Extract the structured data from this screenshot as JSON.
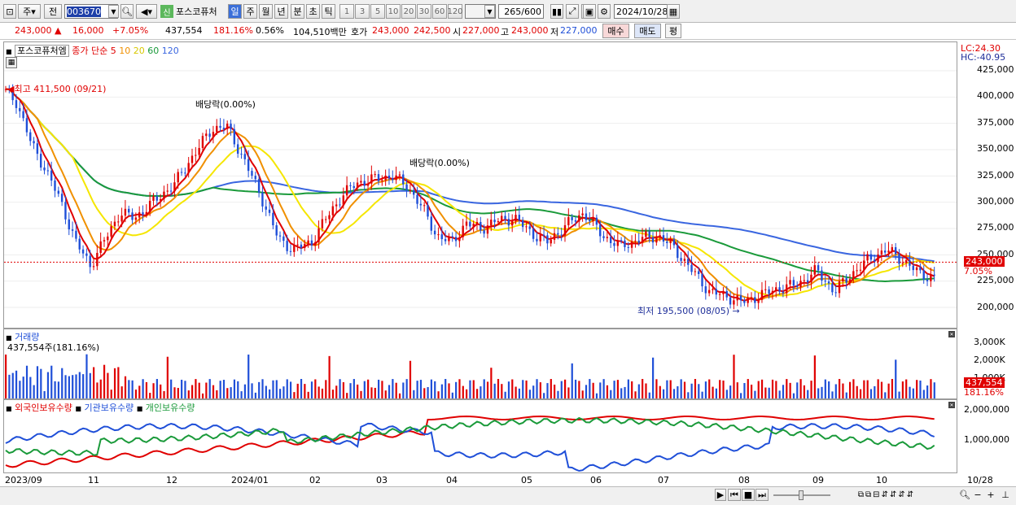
{
  "toolbar": {
    "period_label": "주",
    "prev_label": "전",
    "code": "003670",
    "name": "포스코퓨처",
    "daily": "일",
    "weekly": "주",
    "monthly": "월",
    "yearly": "년",
    "minute": "분",
    "second": "초",
    "tick": "틱",
    "intervals": [
      "1",
      "3",
      "5",
      "10",
      "20",
      "30",
      "60",
      "120"
    ],
    "count_value": "265",
    "count_total": "/600",
    "date": "2024/10/28",
    "new_badge": "신"
  },
  "quote": {
    "price": "243,000",
    "change": "16,000",
    "change_pct": "+7.05%",
    "volume": "437,554",
    "volume_ratio": "181.16%",
    "turnover": "0.56%",
    "amount": "104,510백만",
    "ask_label": "호가",
    "ask": "243,000",
    "bid": "242,500",
    "open_label": "시",
    "open": "227,000",
    "high_label": "고",
    "high": "243,000",
    "low_label": "저",
    "low": "227,000",
    "buy_label": "매수",
    "sell_label": "매도",
    "eval_label": "평"
  },
  "price_chart": {
    "stock_label": "포스코퓨처엠",
    "ma_label": "종가 단순",
    "ma_periods": [
      "5",
      "10",
      "20",
      "60",
      "120"
    ],
    "lc": "LC:24.30",
    "hc": "HC:-40.95",
    "ticks": [
      "425,000",
      "400,000",
      "375,000",
      "350,000",
      "325,000",
      "300,000",
      "275,000",
      "250,000",
      "225,000",
      "200,000"
    ],
    "current": "243,000",
    "current_pct": "7.05%",
    "high_note": "최고 411,500 (09/21)",
    "low_note": "최저 195,500 (08/05)",
    "div_note1": "배당락(0.00%)",
    "div_note2": "배당락(0.00%)"
  },
  "volume_chart": {
    "title": "거래량",
    "value": "437,554주(181.16%)",
    "ticks": [
      "3,000K",
      "2,000K",
      "1,000K"
    ],
    "current": "437,554",
    "current_pct": "181.16%"
  },
  "holdings_chart": {
    "foreign": "외국인보유수량",
    "inst": "기관보유수량",
    "indiv": "개인보유수량",
    "ticks": [
      "2,000,000",
      "1,000,000"
    ]
  },
  "xaxis": {
    "labels": [
      "2023/09",
      "11",
      "12",
      "2024/01",
      "02",
      "03",
      "04",
      "05",
      "06",
      "07",
      "08",
      "09",
      "10"
    ],
    "end_label": "10/28"
  },
  "colors": {
    "up": "#e00000",
    "down": "#1f4fd8",
    "ma5": "#e00000",
    "ma10": "#f09000",
    "ma20": "#f5e600",
    "ma60": "#1a9a3a",
    "ma120": "#3a66e0"
  }
}
